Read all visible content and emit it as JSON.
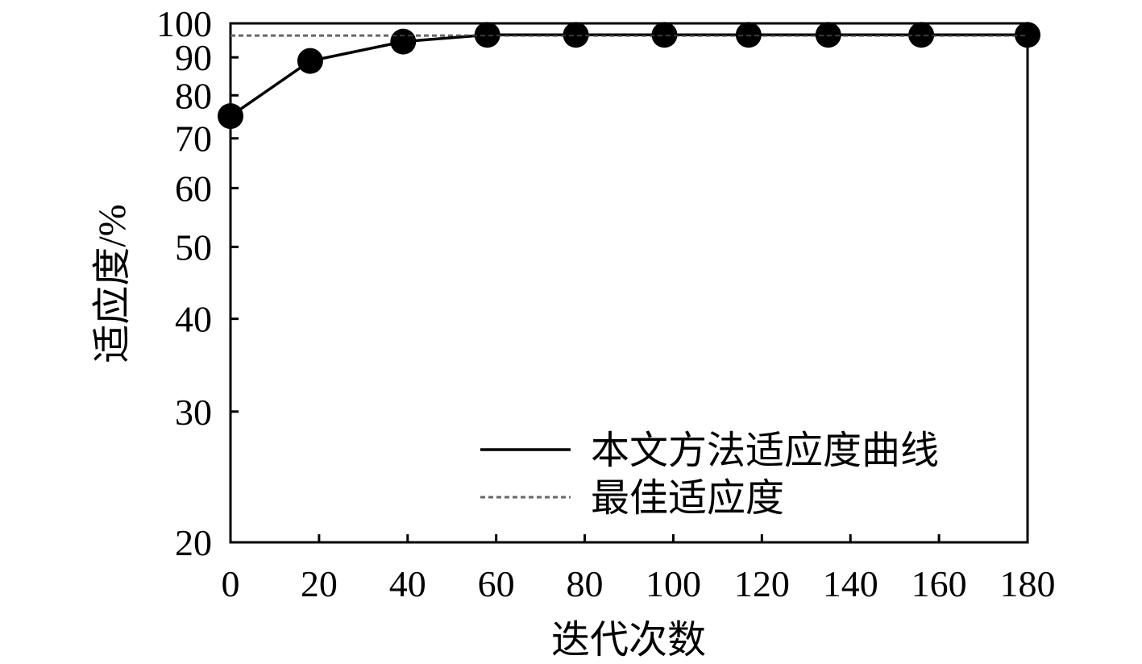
{
  "chart_data": {
    "type": "line",
    "xlabel": "迭代次数",
    "ylabel": "适应度/%",
    "xlim": [
      0,
      180
    ],
    "ylim": [
      20,
      100
    ],
    "x_ticks": [
      0,
      20,
      40,
      60,
      80,
      100,
      120,
      140,
      160,
      180
    ],
    "y_ticks": [
      20,
      30,
      40,
      50,
      60,
      70,
      80,
      90,
      100
    ],
    "y_scale": "log",
    "grid": false,
    "legend_position": "bottom-right",
    "series": [
      {
        "name": "本文方法适应度曲线",
        "style": "solid",
        "color": "#000000",
        "marker": "circle",
        "x": [
          0,
          18,
          39,
          58,
          78,
          98,
          117,
          135,
          156,
          180
        ],
        "y": [
          75,
          89,
          94.5,
          96.5,
          96.5,
          96.5,
          96.5,
          96.5,
          96.5,
          96.5
        ]
      },
      {
        "name": "最佳适应度",
        "style": "dashed",
        "color": "#666666",
        "marker": "none",
        "x": [
          0,
          180
        ],
        "y": [
          96.3,
          96.3
        ]
      }
    ]
  }
}
